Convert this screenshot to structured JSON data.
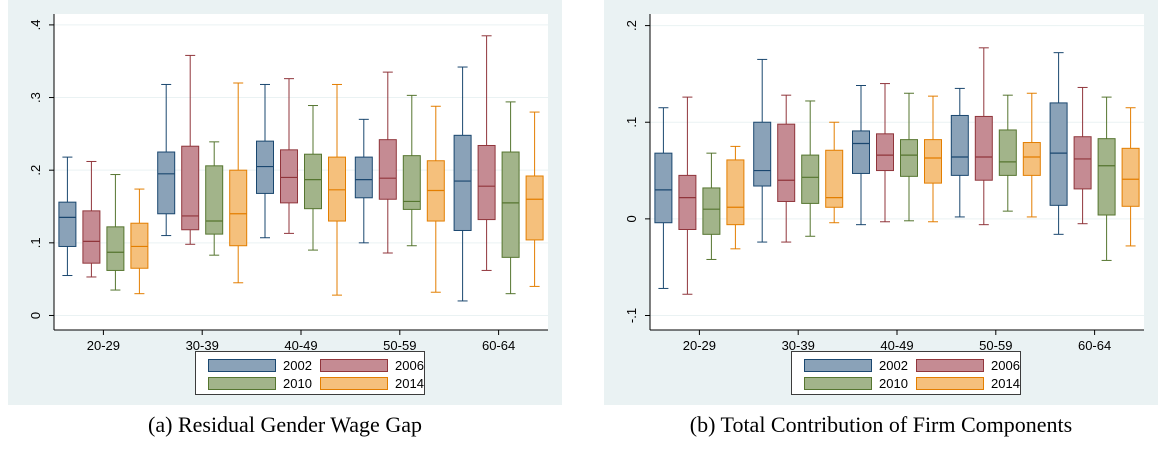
{
  "legend": {
    "items": [
      {
        "label": "2002",
        "fill": "#8aa2b8",
        "stroke": "#1a476f"
      },
      {
        "label": "2006",
        "fill": "#c58b93",
        "stroke": "#90353b"
      },
      {
        "label": "2010",
        "fill": "#a2b48a",
        "stroke": "#55752f"
      },
      {
        "label": "2014",
        "fill": "#f5c07c",
        "stroke": "#e37e00"
      }
    ]
  },
  "chart_data": [
    {
      "type": "box",
      "title": "(a) Residual Gender Wage Gap",
      "xlabel": "",
      "ylabel": "",
      "categories": [
        "20-29",
        "30-39",
        "40-49",
        "50-59",
        "60-64"
      ],
      "ylim": [
        -0.02,
        0.415
      ],
      "yticks": [
        0,
        0.1,
        0.2,
        0.3,
        0.4
      ],
      "ytick_labels": [
        "0",
        ".1",
        ".2",
        ".3",
        ".4"
      ],
      "grid": true,
      "legend_position": "bottom",
      "series": [
        {
          "name": "2002",
          "boxes": [
            {
              "min": 0.055,
              "q1": 0.095,
              "median": 0.135,
              "q3": 0.156,
              "max": 0.218
            },
            {
              "min": 0.11,
              "q1": 0.14,
              "median": 0.195,
              "q3": 0.225,
              "max": 0.318
            },
            {
              "min": 0.107,
              "q1": 0.168,
              "median": 0.205,
              "q3": 0.24,
              "max": 0.318
            },
            {
              "min": 0.1,
              "q1": 0.162,
              "median": 0.187,
              "q3": 0.218,
              "max": 0.27
            },
            {
              "min": 0.02,
              "q1": 0.117,
              "median": 0.185,
              "q3": 0.248,
              "max": 0.342
            }
          ]
        },
        {
          "name": "2006",
          "boxes": [
            {
              "min": 0.053,
              "q1": 0.072,
              "median": 0.102,
              "q3": 0.144,
              "max": 0.212
            },
            {
              "min": 0.098,
              "q1": 0.118,
              "median": 0.137,
              "q3": 0.233,
              "max": 0.358
            },
            {
              "min": 0.113,
              "q1": 0.155,
              "median": 0.19,
              "q3": 0.228,
              "max": 0.326
            },
            {
              "min": 0.086,
              "q1": 0.16,
              "median": 0.189,
              "q3": 0.242,
              "max": 0.335
            },
            {
              "min": 0.062,
              "q1": 0.132,
              "median": 0.178,
              "q3": 0.234,
              "max": 0.385
            }
          ]
        },
        {
          "name": "2010",
          "boxes": [
            {
              "min": 0.035,
              "q1": 0.062,
              "median": 0.087,
              "q3": 0.122,
              "max": 0.194
            },
            {
              "min": 0.083,
              "q1": 0.112,
              "median": 0.13,
              "q3": 0.206,
              "max": 0.239
            },
            {
              "min": 0.09,
              "q1": 0.147,
              "median": 0.187,
              "q3": 0.222,
              "max": 0.289
            },
            {
              "min": 0.096,
              "q1": 0.146,
              "median": 0.157,
              "q3": 0.22,
              "max": 0.303
            },
            {
              "min": 0.03,
              "q1": 0.08,
              "median": 0.155,
              "q3": 0.225,
              "max": 0.294
            }
          ]
        },
        {
          "name": "2014",
          "boxes": [
            {
              "min": 0.03,
              "q1": 0.065,
              "median": 0.095,
              "q3": 0.127,
              "max": 0.174
            },
            {
              "min": 0.045,
              "q1": 0.096,
              "median": 0.14,
              "q3": 0.2,
              "max": 0.32
            },
            {
              "min": 0.028,
              "q1": 0.13,
              "median": 0.173,
              "q3": 0.218,
              "max": 0.318
            },
            {
              "min": 0.032,
              "q1": 0.13,
              "median": 0.172,
              "q3": 0.213,
              "max": 0.288
            },
            {
              "min": 0.04,
              "q1": 0.104,
              "median": 0.16,
              "q3": 0.192,
              "max": 0.28
            }
          ]
        }
      ]
    },
    {
      "type": "box",
      "title": "(b) Total Contribution of Firm Components",
      "xlabel": "",
      "ylabel": "",
      "categories": [
        "20-29",
        "30-39",
        "40-49",
        "50-59",
        "60-64"
      ],
      "ylim": [
        -0.115,
        0.212
      ],
      "yticks": [
        -0.1,
        0,
        0.1,
        0.2
      ],
      "ytick_labels": [
        "-.1",
        "0",
        ".1",
        ".2"
      ],
      "grid": true,
      "legend_position": "bottom",
      "series": [
        {
          "name": "2002",
          "boxes": [
            {
              "min": -0.072,
              "q1": -0.004,
              "median": 0.03,
              "q3": 0.068,
              "max": 0.115
            },
            {
              "min": -0.024,
              "q1": 0.034,
              "median": 0.05,
              "q3": 0.1,
              "max": 0.165
            },
            {
              "min": -0.006,
              "q1": 0.047,
              "median": 0.078,
              "q3": 0.091,
              "max": 0.138
            },
            {
              "min": 0.002,
              "q1": 0.045,
              "median": 0.064,
              "q3": 0.107,
              "max": 0.135
            },
            {
              "min": -0.016,
              "q1": 0.014,
              "median": 0.068,
              "q3": 0.12,
              "max": 0.172
            }
          ]
        },
        {
          "name": "2006",
          "boxes": [
            {
              "min": -0.078,
              "q1": -0.011,
              "median": 0.022,
              "q3": 0.045,
              "max": 0.126
            },
            {
              "min": -0.024,
              "q1": 0.018,
              "median": 0.04,
              "q3": 0.098,
              "max": 0.128
            },
            {
              "min": -0.003,
              "q1": 0.05,
              "median": 0.066,
              "q3": 0.088,
              "max": 0.14
            },
            {
              "min": -0.006,
              "q1": 0.04,
              "median": 0.064,
              "q3": 0.106,
              "max": 0.177
            },
            {
              "min": -0.005,
              "q1": 0.031,
              "median": 0.062,
              "q3": 0.085,
              "max": 0.136
            }
          ]
        },
        {
          "name": "2010",
          "boxes": [
            {
              "min": -0.042,
              "q1": -0.016,
              "median": 0.01,
              "q3": 0.032,
              "max": 0.068
            },
            {
              "min": -0.018,
              "q1": 0.016,
              "median": 0.043,
              "q3": 0.066,
              "max": 0.122
            },
            {
              "min": -0.002,
              "q1": 0.044,
              "median": 0.066,
              "q3": 0.082,
              "max": 0.13
            },
            {
              "min": 0.008,
              "q1": 0.045,
              "median": 0.059,
              "q3": 0.092,
              "max": 0.128
            },
            {
              "min": -0.043,
              "q1": 0.004,
              "median": 0.055,
              "q3": 0.083,
              "max": 0.126
            }
          ]
        },
        {
          "name": "2014",
          "boxes": [
            {
              "min": -0.031,
              "q1": -0.006,
              "median": 0.012,
              "q3": 0.061,
              "max": 0.075
            },
            {
              "min": -0.004,
              "q1": 0.012,
              "median": 0.022,
              "q3": 0.071,
              "max": 0.1
            },
            {
              "min": -0.003,
              "q1": 0.037,
              "median": 0.063,
              "q3": 0.082,
              "max": 0.127
            },
            {
              "min": 0.002,
              "q1": 0.045,
              "median": 0.064,
              "q3": 0.079,
              "max": 0.13
            },
            {
              "min": -0.028,
              "q1": 0.013,
              "median": 0.041,
              "q3": 0.073,
              "max": 0.115
            }
          ]
        }
      ]
    }
  ]
}
